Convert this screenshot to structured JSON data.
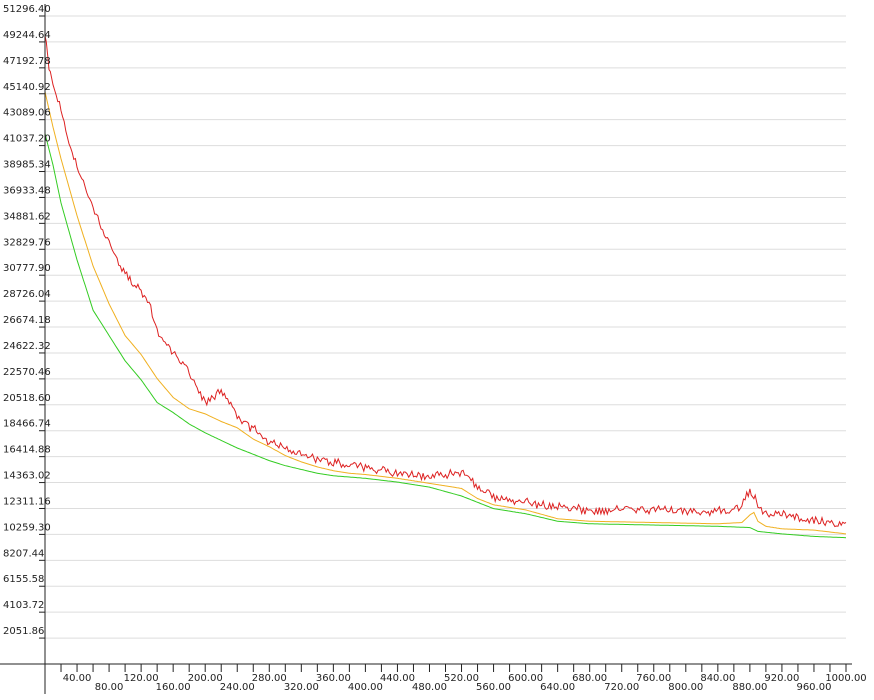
{
  "chart_data": {
    "type": "line",
    "title": "",
    "xlabel": "",
    "ylabel": "",
    "xlim": [
      0,
      1000
    ],
    "ylim": [
      0,
      51296.4
    ],
    "grid": true,
    "legend": "none",
    "y_ticks": [
      {
        "value": 2051.86,
        "label": "2051.86"
      },
      {
        "value": 4103.72,
        "label": "4103.72"
      },
      {
        "value": 6155.58,
        "label": "6155.58"
      },
      {
        "value": 8207.44,
        "label": "8207.44"
      },
      {
        "value": 10259.3,
        "label": "10259.30"
      },
      {
        "value": 12311.16,
        "label": "12311.16"
      },
      {
        "value": 14363.02,
        "label": "14363.02"
      },
      {
        "value": 16414.88,
        "label": "16414.88"
      },
      {
        "value": 18466.74,
        "label": "18466.74"
      },
      {
        "value": 20518.6,
        "label": "20518.60"
      },
      {
        "value": 22570.46,
        "label": "22570.46"
      },
      {
        "value": 24622.32,
        "label": "24622.32"
      },
      {
        "value": 26674.18,
        "label": "26674.18"
      },
      {
        "value": 28726.04,
        "label": "28726.04"
      },
      {
        "value": 30777.9,
        "label": "30777.90"
      },
      {
        "value": 32829.76,
        "label": "32829.76"
      },
      {
        "value": 34881.62,
        "label": "34881.62"
      },
      {
        "value": 36933.48,
        "label": "36933.48"
      },
      {
        "value": 38985.34,
        "label": "38985.34"
      },
      {
        "value": 41037.2,
        "label": "41037.20"
      },
      {
        "value": 43089.06,
        "label": "43089.06"
      },
      {
        "value": 45140.92,
        "label": "45140.92"
      },
      {
        "value": 47192.78,
        "label": "47192.78"
      },
      {
        "value": 49244.64,
        "label": "49244.64"
      },
      {
        "value": 51296.4,
        "label": "51296.40"
      }
    ],
    "x_ticks": [
      {
        "value": 40,
        "label": "40.00"
      },
      {
        "value": 80,
        "label": "80.00"
      },
      {
        "value": 120,
        "label": "120.00"
      },
      {
        "value": 160,
        "label": "160.00"
      },
      {
        "value": 200,
        "label": "200.00"
      },
      {
        "value": 240,
        "label": "240.00"
      },
      {
        "value": 280,
        "label": "280.00"
      },
      {
        "value": 320,
        "label": "320.00"
      },
      {
        "value": 360,
        "label": "360.00"
      },
      {
        "value": 400,
        "label": "400.00"
      },
      {
        "value": 440,
        "label": "440.00"
      },
      {
        "value": 480,
        "label": "480.00"
      },
      {
        "value": 520,
        "label": "520.00"
      },
      {
        "value": 560,
        "label": "560.00"
      },
      {
        "value": 600,
        "label": "600.00"
      },
      {
        "value": 640,
        "label": "640.00"
      },
      {
        "value": 680,
        "label": "680.00"
      },
      {
        "value": 720,
        "label": "720.00"
      },
      {
        "value": 760,
        "label": "760.00"
      },
      {
        "value": 800,
        "label": "800.00"
      },
      {
        "value": 840,
        "label": "840.00"
      },
      {
        "value": 880,
        "label": "880.00"
      },
      {
        "value": 920,
        "label": "920.00"
      },
      {
        "value": 960,
        "label": "960.00"
      },
      {
        "value": 1000,
        "label": "1000.00"
      }
    ],
    "series": [
      {
        "color": "#dd2222",
        "x": [
          0,
          5,
          10,
          20,
          30,
          40,
          50,
          60,
          70,
          80,
          90,
          100,
          110,
          120,
          130,
          140,
          150,
          160,
          170,
          180,
          190,
          200,
          210,
          220,
          230,
          240,
          250,
          260,
          280,
          300,
          320,
          340,
          360,
          380,
          400,
          420,
          440,
          460,
          480,
          500,
          520,
          530,
          540,
          560,
          580,
          600,
          620,
          640,
          660,
          680,
          700,
          720,
          740,
          760,
          780,
          800,
          820,
          840,
          860,
          870,
          880,
          885,
          890,
          900,
          910,
          920,
          940,
          960,
          980,
          990,
          1000
        ],
        "y": [
          49900,
          47000,
          45800,
          44000,
          41000,
          39500,
          37800,
          36000,
          34500,
          33500,
          32000,
          31000,
          30000,
          29500,
          28500,
          26500,
          25500,
          24500,
          23800,
          23200,
          22000,
          20800,
          21200,
          21500,
          20800,
          19600,
          19000,
          18600,
          17600,
          17100,
          16500,
          16300,
          15900,
          15800,
          15600,
          15400,
          15100,
          15000,
          14900,
          15000,
          15200,
          14800,
          14000,
          13300,
          12900,
          12800,
          12600,
          12400,
          12300,
          12200,
          12200,
          12300,
          12300,
          12200,
          12100,
          12000,
          12100,
          12100,
          12200,
          12600,
          13700,
          13300,
          12400,
          11900,
          11800,
          11800,
          11600,
          11300,
          11200,
          11000,
          11200
        ]
      },
      {
        "color": "#f0b020",
        "x": [
          0,
          10,
          20,
          40,
          60,
          80,
          100,
          120,
          140,
          160,
          180,
          200,
          220,
          240,
          260,
          280,
          300,
          320,
          340,
          360,
          380,
          400,
          440,
          480,
          520,
          540,
          560,
          600,
          640,
          680,
          720,
          760,
          800,
          840,
          870,
          880,
          885,
          890,
          900,
          920,
          960,
          1000
        ],
        "y": [
          45300,
          42500,
          40000,
          35500,
          31500,
          28500,
          26000,
          24500,
          22600,
          21100,
          20200,
          19800,
          19200,
          18700,
          17800,
          17200,
          16500,
          16000,
          15600,
          15300,
          15100,
          15000,
          14700,
          14300,
          13900,
          13100,
          12600,
          12200,
          11500,
          11300,
          11250,
          11200,
          11150,
          11100,
          11200,
          11800,
          12000,
          11300,
          10900,
          10700,
          10600,
          10300
        ]
      },
      {
        "color": "#33cc22",
        "x": [
          0,
          10,
          20,
          40,
          60,
          80,
          100,
          120,
          140,
          160,
          180,
          200,
          220,
          240,
          260,
          280,
          300,
          320,
          340,
          360,
          380,
          400,
          440,
          480,
          520,
          540,
          560,
          600,
          640,
          680,
          720,
          760,
          800,
          840,
          880,
          890,
          920,
          960,
          1000
        ],
        "y": [
          42000,
          39500,
          36500,
          32000,
          28000,
          26000,
          24000,
          22500,
          20700,
          19900,
          19000,
          18300,
          17700,
          17100,
          16600,
          16100,
          15700,
          15400,
          15100,
          14900,
          14800,
          14700,
          14400,
          14000,
          13300,
          12800,
          12300,
          11900,
          11300,
          11100,
          11050,
          11000,
          10950,
          10900,
          10800,
          10500,
          10300,
          10100,
          10000
        ]
      }
    ]
  }
}
